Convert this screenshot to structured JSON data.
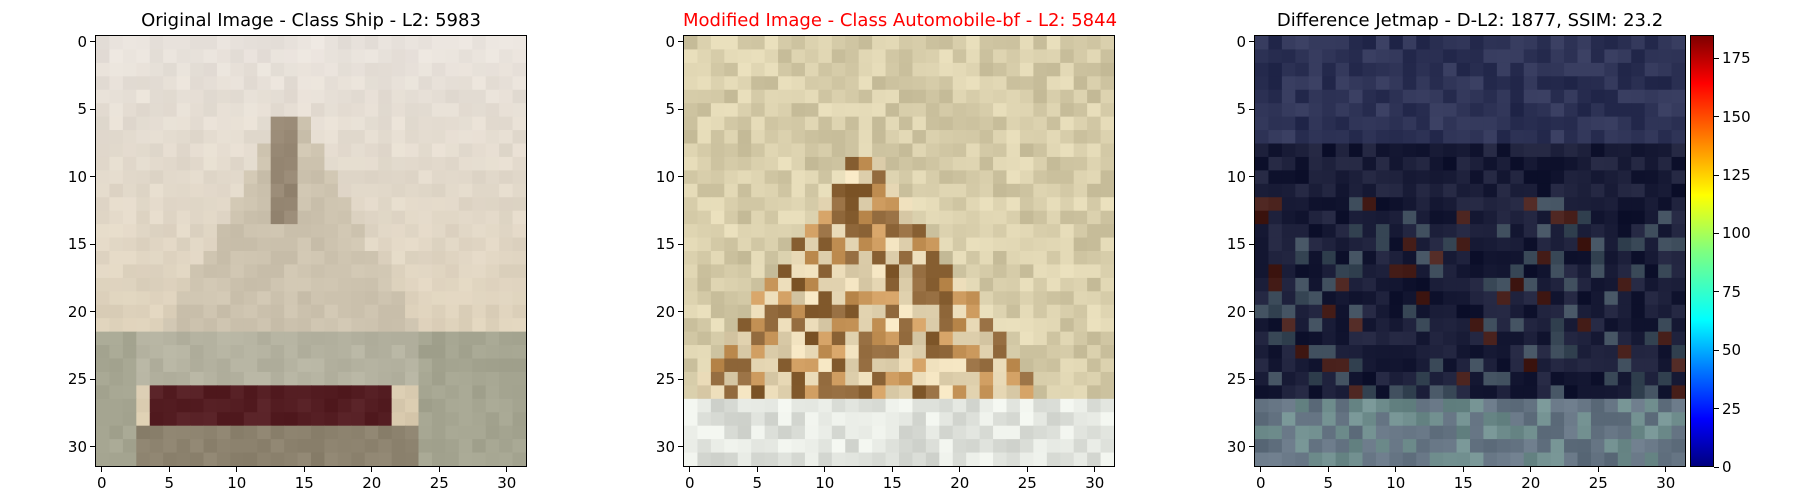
{
  "chart_data": [
    {
      "type": "heatmap",
      "title": "Original Image - Class Ship - L2: 5983",
      "title_color": "#000000",
      "x_ticks": [
        "0",
        "5",
        "10",
        "15",
        "20",
        "25",
        "30"
      ],
      "y_ticks": [
        "0",
        "5",
        "10",
        "15",
        "20",
        "25",
        "30"
      ],
      "xlim": [
        -0.5,
        31.5
      ],
      "ylim": [
        31.5,
        -0.5
      ],
      "grid": false
    },
    {
      "type": "heatmap",
      "title": "Modified Image - Class Automobile-bf - L2: 5844",
      "title_color": "#ff0000",
      "x_ticks": [
        "0",
        "5",
        "10",
        "15",
        "20",
        "25",
        "30"
      ],
      "y_ticks": [
        "0",
        "5",
        "10",
        "15",
        "20",
        "25",
        "30"
      ],
      "xlim": [
        -0.5,
        31.5
      ],
      "ylim": [
        31.5,
        -0.5
      ],
      "grid": false
    },
    {
      "type": "heatmap",
      "title": "Difference Jetmap - D-L2: 1877, SSIM: 23.2",
      "title_color": "#000000",
      "x_ticks": [
        "0",
        "5",
        "10",
        "15",
        "20",
        "25",
        "30"
      ],
      "y_ticks": [
        "0",
        "5",
        "10",
        "15",
        "20",
        "25",
        "30"
      ],
      "xlim": [
        -0.5,
        31.5
      ],
      "ylim": [
        31.5,
        -0.5
      ],
      "grid": false,
      "colorbar": {
        "ticks": [
          "0",
          "25",
          "50",
          "75",
          "100",
          "125",
          "150",
          "175"
        ],
        "range": [
          0,
          185
        ],
        "colormap": "jet"
      }
    }
  ]
}
